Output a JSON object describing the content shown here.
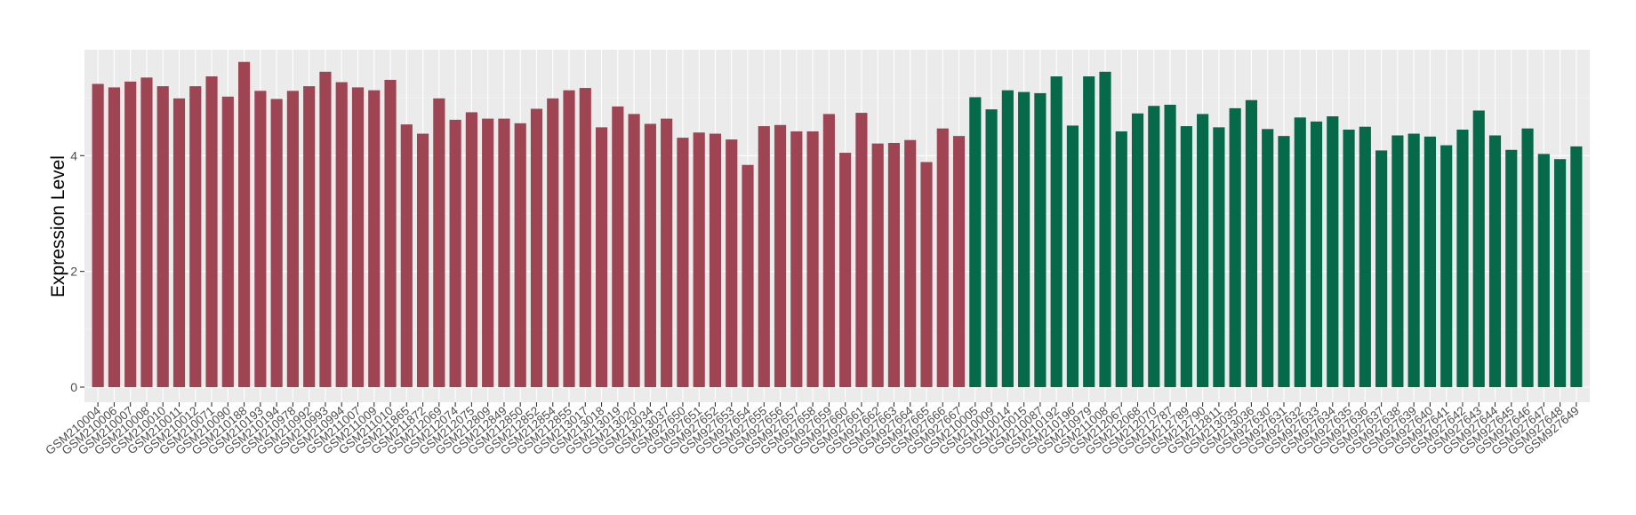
{
  "chart_data": {
    "type": "bar",
    "title": "",
    "xlabel": "",
    "ylabel": "Expression Level",
    "ylim": [
      0,
      5.8
    ],
    "yticks": [
      0,
      2,
      4
    ],
    "grid": true,
    "legend": "none",
    "colors": {
      "group_a": "#9e4452",
      "group_b": "#06694a",
      "panel": "#ebebeb",
      "grid": "#ffffff"
    },
    "categories": [
      "GSM210004",
      "GSM210006",
      "GSM210007",
      "GSM210008",
      "GSM210010",
      "GSM210011",
      "GSM210012",
      "GSM210071",
      "GSM210090",
      "GSM210188",
      "GSM210193",
      "GSM210194",
      "GSM210978",
      "GSM210992",
      "GSM210993",
      "GSM210994",
      "GSM211007",
      "GSM211009",
      "GSM211010",
      "GSM211865",
      "GSM211872",
      "GSM212069",
      "GSM212074",
      "GSM212075",
      "GSM212809",
      "GSM212849",
      "GSM212850",
      "GSM212852",
      "GSM212854",
      "GSM212855",
      "GSM213017",
      "GSM213018",
      "GSM213019",
      "GSM213020",
      "GSM213034",
      "GSM213037",
      "GSM927650",
      "GSM927651",
      "GSM927652",
      "GSM927653",
      "GSM927654",
      "GSM927655",
      "GSM927656",
      "GSM927657",
      "GSM927658",
      "GSM927659",
      "GSM927660",
      "GSM927661",
      "GSM927662",
      "GSM927663",
      "GSM927664",
      "GSM927665",
      "GSM927666",
      "GSM927667",
      "GSM210005",
      "GSM210009",
      "GSM210014",
      "GSM210015",
      "GSM210087",
      "GSM210192",
      "GSM210196",
      "GSM210979",
      "GSM211008",
      "GSM212067",
      "GSM212068",
      "GSM212070",
      "GSM212787",
      "GSM212789",
      "GSM212790",
      "GSM212811",
      "GSM213035",
      "GSM213036",
      "GSM927630",
      "GSM927631",
      "GSM927632",
      "GSM927633",
      "GSM927634",
      "GSM927635",
      "GSM927636",
      "GSM927637",
      "GSM927638",
      "GSM927639",
      "GSM927640",
      "GSM927641",
      "GSM927642",
      "GSM927643",
      "GSM927644",
      "GSM927645",
      "GSM927646",
      "GSM927647",
      "GSM927648",
      "GSM927649"
    ],
    "values": [
      5.24,
      5.18,
      5.28,
      5.35,
      5.2,
      4.99,
      5.2,
      5.37,
      5.02,
      5.62,
      5.12,
      4.98,
      5.12,
      5.2,
      5.45,
      5.27,
      5.18,
      5.13,
      5.31,
      4.54,
      4.38,
      4.99,
      4.62,
      4.75,
      4.64,
      4.64,
      4.56,
      4.81,
      4.99,
      5.13,
      5.17,
      4.49,
      4.85,
      4.72,
      4.55,
      4.64,
      4.31,
      4.4,
      4.38,
      4.28,
      3.84,
      4.51,
      4.53,
      4.42,
      4.42,
      4.72,
      4.05,
      4.74,
      4.21,
      4.22,
      4.27,
      3.89,
      4.47,
      4.34,
      5.01,
      4.8,
      5.13,
      5.1,
      5.08,
      5.37,
      4.52,
      5.37,
      5.45,
      4.42,
      4.73,
      4.86,
      4.88,
      4.51,
      4.72,
      4.49,
      4.82,
      4.96,
      4.46,
      4.34,
      4.66,
      4.59,
      4.68,
      4.45,
      4.5,
      4.09,
      4.35,
      4.38,
      4.33,
      4.18,
      4.45,
      4.78,
      4.35,
      4.1,
      4.47,
      4.03,
      3.94,
      4.16
    ],
    "groups": [
      "a",
      "a",
      "a",
      "a",
      "a",
      "a",
      "a",
      "a",
      "a",
      "a",
      "a",
      "a",
      "a",
      "a",
      "a",
      "a",
      "a",
      "a",
      "a",
      "a",
      "a",
      "a",
      "a",
      "a",
      "a",
      "a",
      "a",
      "a",
      "a",
      "a",
      "a",
      "a",
      "a",
      "a",
      "a",
      "a",
      "a",
      "a",
      "a",
      "a",
      "a",
      "a",
      "a",
      "a",
      "a",
      "a",
      "a",
      "a",
      "a",
      "a",
      "a",
      "a",
      "a",
      "a",
      "b",
      "b",
      "b",
      "b",
      "b",
      "b",
      "b",
      "b",
      "b",
      "b",
      "b",
      "b",
      "b",
      "b",
      "b",
      "b",
      "b",
      "b",
      "b",
      "b",
      "b",
      "b",
      "b",
      "b",
      "b",
      "b",
      "b",
      "b",
      "b",
      "b",
      "b",
      "b",
      "b",
      "b",
      "b",
      "b",
      "b",
      "b"
    ]
  }
}
